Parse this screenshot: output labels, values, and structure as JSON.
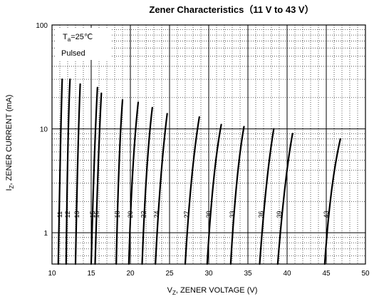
{
  "chart_data": {
    "type": "line",
    "title": "Zener Characteristics（11 V to 43 V）",
    "xlabel": "V",
    "xlabel_sub": "Z",
    "xlabel_rest": ", ZENER VOLTAGE (V)",
    "ylabel": "I",
    "ylabel_sub": "Z",
    "ylabel_rest": ", ZENER CURRENT (mA)",
    "xlim": [
      10,
      50
    ],
    "ylim": [
      0.5,
      100
    ],
    "y_scale": "log",
    "x_ticks": [
      "10",
      "15",
      "20",
      "25",
      "30",
      "35",
      "40",
      "45",
      "50"
    ],
    "y_ticks": [
      {
        "value": 100,
        "label": "100"
      },
      {
        "value": 10,
        "label": "10"
      },
      {
        "value": 1,
        "label": "1"
      }
    ],
    "grid": "dotted",
    "conditions": {
      "line1_main": "T",
      "line1_sub": "a",
      "line1_rest": "=25℃",
      "line2": "Pulsed"
    },
    "series": [
      {
        "name": "11",
        "x": [
          10.8,
          11.1,
          11.3
        ],
        "y": [
          0.5,
          10,
          30
        ]
      },
      {
        "name": "12",
        "x": [
          11.8,
          12.0,
          12.3
        ],
        "y": [
          0.5,
          10,
          30
        ]
      },
      {
        "name": "13",
        "x": [
          13.0,
          13.3,
          13.6
        ],
        "y": [
          0.5,
          8,
          27
        ]
      },
      {
        "name": "15",
        "x": [
          15.0,
          15.4,
          15.8
        ],
        "y": [
          0.5,
          7,
          25
        ]
      },
      {
        "name": "16",
        "x": [
          15.5,
          15.9,
          16.3
        ],
        "y": [
          0.5,
          6,
          22
        ]
      },
      {
        "name": "18",
        "x": [
          18.2,
          18.5,
          19.0
        ],
        "y": [
          0.5,
          6,
          19
        ]
      },
      {
        "name": "20",
        "x": [
          19.8,
          20.2,
          21.0
        ],
        "y": [
          0.5,
          5,
          18
        ]
      },
      {
        "name": "22",
        "x": [
          21.5,
          22.0,
          22.8
        ],
        "y": [
          0.5,
          5,
          16
        ]
      },
      {
        "name": "24",
        "x": [
          23.2,
          23.8,
          24.7
        ],
        "y": [
          0.5,
          4,
          14
        ]
      },
      {
        "name": "27",
        "x": [
          27.0,
          27.7,
          28.8
        ],
        "y": [
          0.5,
          4,
          13
        ]
      },
      {
        "name": "30",
        "x": [
          29.8,
          30.5,
          31.6
        ],
        "y": [
          0.5,
          4,
          11
        ]
      },
      {
        "name": "33",
        "x": [
          32.8,
          33.5,
          34.5
        ],
        "y": [
          0.5,
          4,
          10.5
        ]
      },
      {
        "name": "36",
        "x": [
          36.5,
          37.3,
          38.3
        ],
        "y": [
          0.5,
          3.5,
          10
        ]
      },
      {
        "name": "39",
        "x": [
          38.8,
          39.7,
          40.7
        ],
        "y": [
          0.5,
          3.5,
          9
        ]
      },
      {
        "name": "43",
        "x": [
          44.8,
          45.5,
          46.8
        ],
        "y": [
          0.5,
          3,
          8
        ]
      }
    ]
  }
}
